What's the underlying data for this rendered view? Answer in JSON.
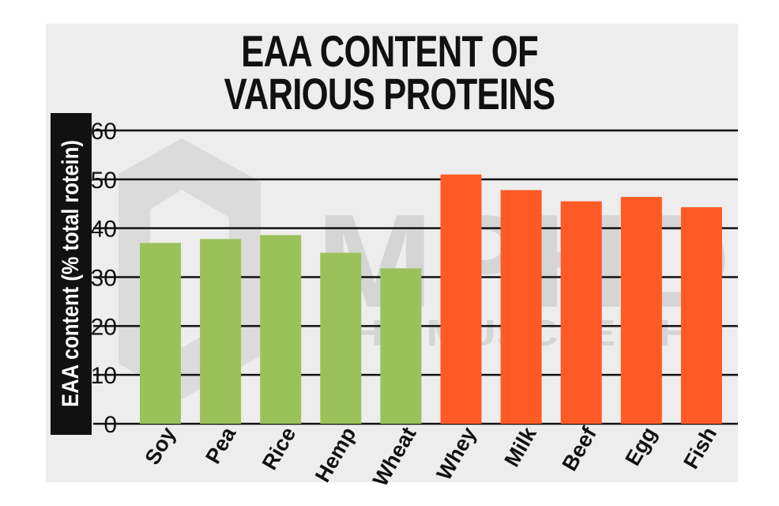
{
  "title_lines": [
    "EAA CONTENT OF",
    "VARIOUS PROTEINS"
  ],
  "watermark": {
    "big": "MPHD",
    "small": "THE MUSCLE PHD"
  },
  "colors": {
    "plant": "#9bc25a",
    "animal": "#ff5a26",
    "background": "#ededed",
    "text": "#111111"
  },
  "chart_data": {
    "type": "bar",
    "title": "EAA CONTENT OF VARIOUS PROTEINS",
    "ylabel": "EAA content (% total rotein)",
    "xlabel": "",
    "ylim": [
      0,
      60
    ],
    "yticks": [
      0,
      10,
      20,
      30,
      40,
      50,
      60
    ],
    "grid": true,
    "categories": [
      "Soy",
      "Pea",
      "Rice",
      "Hemp",
      "Wheat",
      "Whey",
      "Milk",
      "Beef",
      "Egg",
      "Fish"
    ],
    "values": [
      37,
      37.8,
      38.6,
      35,
      31.8,
      51,
      47.8,
      45.5,
      46.4,
      44.3
    ],
    "bar_groups": [
      "plant",
      "plant",
      "plant",
      "plant",
      "plant",
      "animal",
      "animal",
      "animal",
      "animal",
      "animal"
    ]
  }
}
